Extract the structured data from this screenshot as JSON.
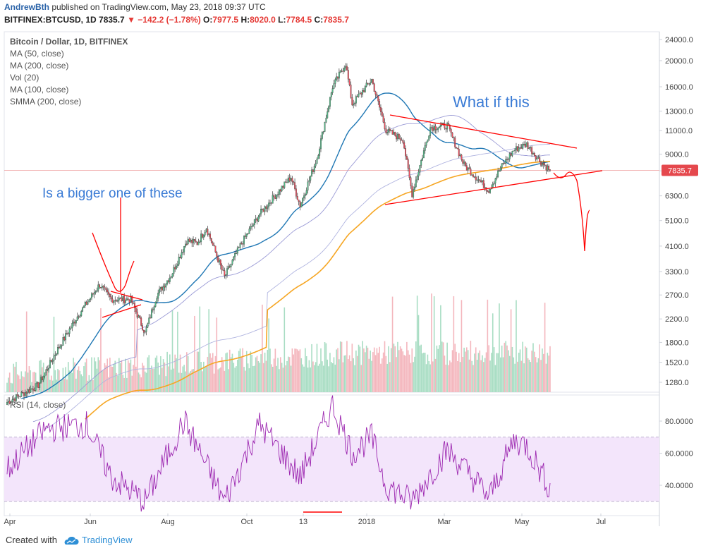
{
  "header": {
    "author": "AndrewBth",
    "published": "published on TradingView.com, May 23, 2018 09:37 UTC",
    "symbol": "BITFINEX:BTCUSD, 1D",
    "last": "7835.7",
    "change": "−142.2 (−1.78%)",
    "o_label": "O:",
    "o": "7977.5",
    "h_label": "H:",
    "h": "8020.0",
    "l_label": "L:",
    "l": "7784.5",
    "c_label": "C:",
    "c": "7835.7"
  },
  "legend": [
    "Bitcoin / Dollar, 1D, BITFINEX",
    "MA (50, close)",
    "MA (200, close)",
    "Vol (20)",
    "MA (100, close)",
    "SMMA (200, close)"
  ],
  "rsi_legend": "RSI (14, close)",
  "annotations": {
    "left": "Is a bigger one of these",
    "right": "What if this"
  },
  "price_badge": "7835.7",
  "footer": {
    "created": "Created with",
    "brand": "TradingView"
  },
  "colors": {
    "up": "#53b987",
    "down": "#eb4d5c",
    "ma50": "#1f77b4",
    "ma200": "#9b9bd6",
    "smma": "#f6a623",
    "rsi": "#9c27b0",
    "annotation_text": "#3a7bd5",
    "trend": "#ff0000",
    "rsi_band": "#f3e5fb"
  },
  "chart_data": [
    {
      "type": "candlestick",
      "title": "Bitcoin / Dollar, 1D, BITFINEX",
      "y_scale": "log",
      "y_ticks": [
        1280,
        1520,
        1800,
        2200,
        2700,
        3300,
        4100,
        5100,
        6300,
        7800,
        9000,
        11000,
        13000,
        16000,
        20000,
        24000
      ],
      "x_ticks": [
        "Apr",
        "Jun",
        "Aug",
        "Oct",
        "13",
        "2018",
        "Mar",
        "May",
        "Jul"
      ],
      "last_close": 7835.7,
      "price_path": [
        [
          "2017-04-01",
          1080
        ],
        [
          "2017-04-25",
          1250
        ],
        [
          "2017-05-10",
          1700
        ],
        [
          "2017-05-25",
          2250
        ],
        [
          "2017-06-11",
          2950
        ],
        [
          "2017-06-20",
          2600
        ],
        [
          "2017-07-05",
          2600
        ],
        [
          "2017-07-16",
          1950
        ],
        [
          "2017-07-25",
          2700
        ],
        [
          "2017-08-05",
          3200
        ],
        [
          "2017-08-17",
          4300
        ],
        [
          "2017-08-25",
          4200
        ],
        [
          "2017-09-01",
          4800
        ],
        [
          "2017-09-15",
          3150
        ],
        [
          "2017-09-28",
          4200
        ],
        [
          "2017-10-12",
          5400
        ],
        [
          "2017-10-20",
          6000
        ],
        [
          "2017-11-05",
          7400
        ],
        [
          "2017-11-12",
          5800
        ],
        [
          "2017-11-25",
          8700
        ],
        [
          "2017-12-07",
          16000
        ],
        [
          "2017-12-17",
          19500
        ],
        [
          "2017-12-22",
          13800
        ],
        [
          "2018-01-06",
          17000
        ],
        [
          "2018-01-17",
          11000
        ],
        [
          "2018-01-30",
          10200
        ],
        [
          "2018-02-06",
          6400
        ],
        [
          "2018-02-20",
          11300
        ],
        [
          "2018-03-05",
          11500
        ],
        [
          "2018-03-18",
          8200
        ],
        [
          "2018-04-01",
          7000
        ],
        [
          "2018-04-06",
          6600
        ],
        [
          "2018-04-15",
          8000
        ],
        [
          "2018-04-25",
          9300
        ],
        [
          "2018-05-05",
          9800
        ],
        [
          "2018-05-15",
          8500
        ],
        [
          "2018-05-23",
          7835.7
        ]
      ],
      "series": [
        {
          "name": "MA (50, close)"
        },
        {
          "name": "MA (200, close)"
        },
        {
          "name": "MA (100, close)"
        },
        {
          "name": "SMMA (200, close)"
        },
        {
          "name": "Vol (20)"
        }
      ]
    },
    {
      "type": "line",
      "title": "RSI (14, close)",
      "y_ticks": [
        40,
        60,
        80
      ],
      "band": [
        30,
        70
      ],
      "rsi_path": [
        [
          "2017-04-01",
          50
        ],
        [
          "2017-05-01",
          75
        ],
        [
          "2017-06-01",
          78
        ],
        [
          "2017-06-20",
          45
        ],
        [
          "2017-07-16",
          30
        ],
        [
          "2017-08-15",
          80
        ],
        [
          "2017-09-15",
          30
        ],
        [
          "2017-10-12",
          78
        ],
        [
          "2017-11-12",
          45
        ],
        [
          "2017-12-07",
          90
        ],
        [
          "2017-12-22",
          60
        ],
        [
          "2018-01-06",
          70
        ],
        [
          "2018-01-17",
          40
        ],
        [
          "2018-02-06",
          30
        ],
        [
          "2018-03-05",
          62
        ],
        [
          "2018-04-01",
          38
        ],
        [
          "2018-04-06",
          32
        ],
        [
          "2018-04-25",
          68
        ],
        [
          "2018-05-05",
          65
        ],
        [
          "2018-05-23",
          38
        ]
      ]
    }
  ]
}
